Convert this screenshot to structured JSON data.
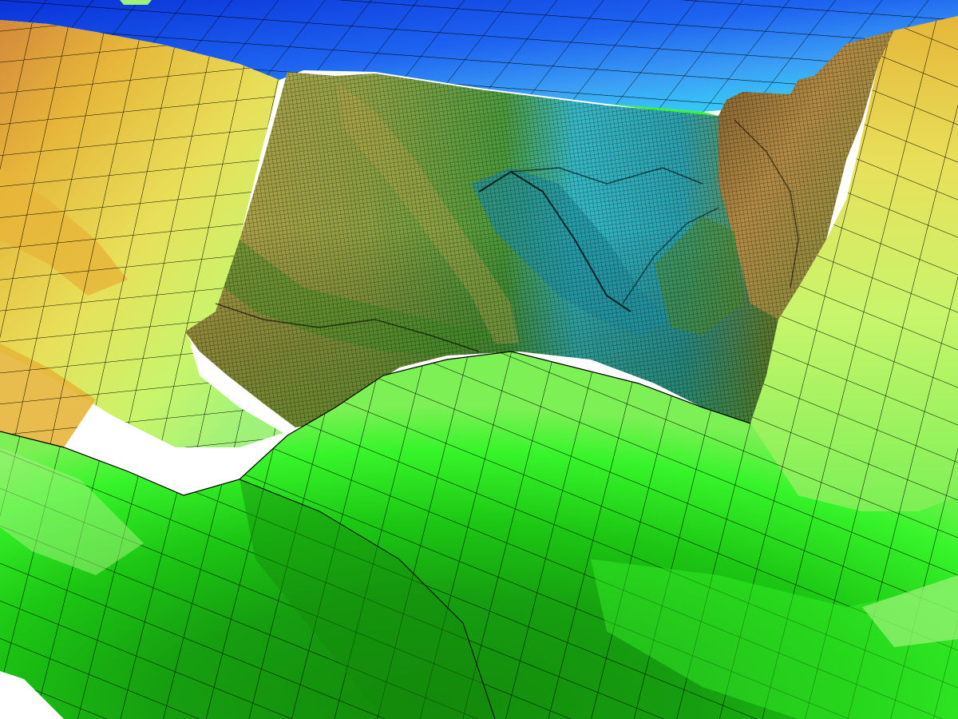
{
  "scene": {
    "kind": "3d-terrain-mesh-render",
    "background": "#ffffff",
    "wireframe_color": "#000000",
    "palette": {
      "deep_blue": "#0a3ce6",
      "blue": "#1e64f0",
      "sky_blue": "#3ca0f5",
      "cyan": "#2ee6f2",
      "teal": "#35b9c6",
      "dark_green": "#138a0b",
      "green": "#1cc613",
      "bright_green": "#37f52a",
      "light_green": "#9ef27a",
      "pale_green": "#c8f56c",
      "yellow": "#e8e05a",
      "amber": "#e6b63a",
      "orange": "#d4893a",
      "olive": "#9c9a3e",
      "brown": "#8c6f3a"
    },
    "regions": [
      {
        "name": "blue-plateau-mesh",
        "color_key": "blue"
      },
      {
        "name": "left-ridge-mesh",
        "color_key": "amber"
      },
      {
        "name": "central-valley-fine-mesh",
        "color_key": "teal"
      },
      {
        "name": "right-cliff-mesh",
        "color_key": "brown"
      },
      {
        "name": "right-slope-mesh",
        "color_key": "pale_green"
      },
      {
        "name": "foreground-hill-mesh",
        "color_key": "green"
      }
    ]
  }
}
